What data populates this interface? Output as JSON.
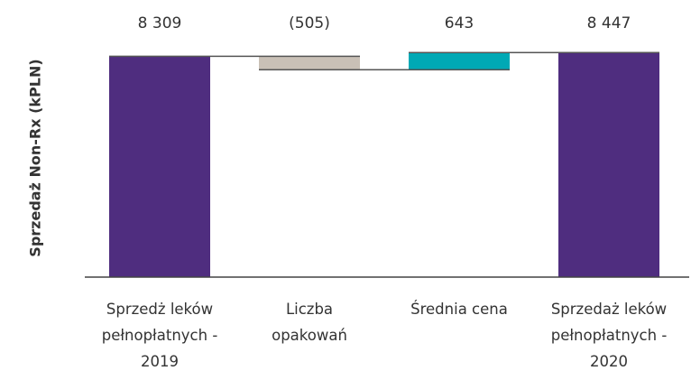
{
  "chart_data": {
    "type": "waterfall",
    "y_label": "Sprzedaż Non-Rx (kPLN)",
    "categories": [
      "Sprzedż leków\npełnopłatnych -\n2019",
      "Liczba\nopakowań",
      "Średnia cena",
      "Sprzedaż leków\npełnopłatnych -\n2020"
    ],
    "values": [
      8309,
      -505,
      643,
      8447
    ],
    "value_labels": [
      "8 309",
      "(505)",
      "643",
      "8 447"
    ],
    "colors": [
      "#4f2d7f",
      "#c9c0b6",
      "#00a9b5",
      "#4f2d7f"
    ],
    "ylim": [
      0,
      9000
    ]
  }
}
